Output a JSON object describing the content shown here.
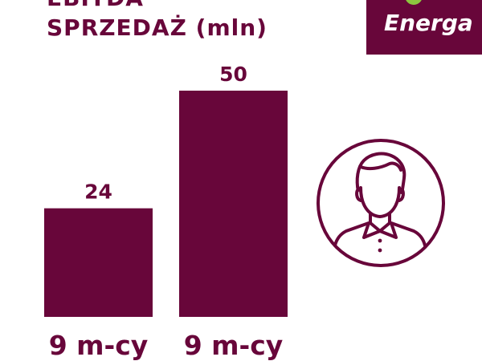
{
  "title": {
    "line1": "EBITDA",
    "line2_main": "SPRZEDAŻ",
    "line2_unit": "(mln)"
  },
  "logo": {
    "text": "Energa",
    "colors": {
      "box": "#68063a",
      "leaf": "#8cc63f",
      "text": "#ffffff"
    }
  },
  "icons": {
    "person": "person-avatar-icon"
  },
  "colors": {
    "accent": "#68063a",
    "background": "#ffffff"
  },
  "chart_data": {
    "type": "bar",
    "categories": [
      "9 m-cy",
      "9 m-cy"
    ],
    "values": [
      24,
      50
    ],
    "data_labels": [
      "24",
      "50"
    ],
    "title": "EBITDA SPRZEDAŻ (mln)",
    "xlabel": "",
    "ylabel": "",
    "ylim": [
      0,
      50
    ],
    "grid": false,
    "legend": "none"
  }
}
